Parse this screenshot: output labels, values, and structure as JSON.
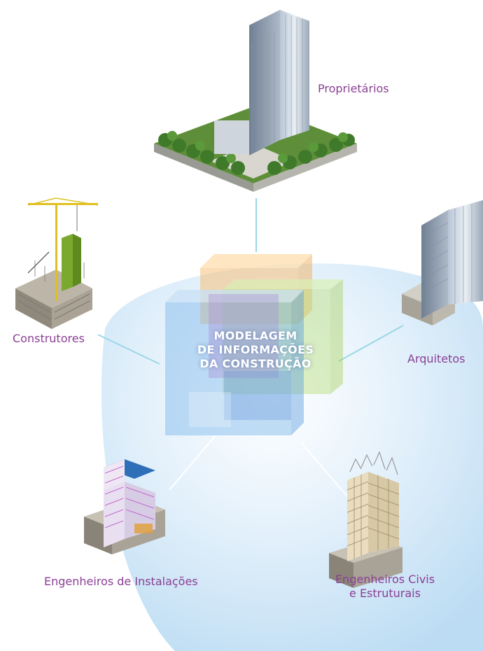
{
  "center": {
    "line1": "MODELAGEM",
    "line2": "DE INFORMAÇÕES",
    "line3": "DA CONSTRUÇÃO"
  },
  "nodes": {
    "owners": "Proprietários",
    "builders": "Construtores",
    "architects": "Arquitetos",
    "mep_engineers": "Engenheiros de Instalações",
    "structural_line1": "Engenheiros Civis",
    "structural_line2": "e Estruturais"
  },
  "colors": {
    "label": "#8a3f94",
    "connector": "#9bd7e6",
    "halo": "#cfe6f7",
    "cube_orange": "#f5c07a",
    "cube_green": "#b9de7a",
    "cube_blue": "#7ab6ec",
    "cube_purple": "#a98fd6"
  },
  "icons": {
    "owners": "office-tower-with-park-icon",
    "builders": "construction-crane-site-icon",
    "architects": "glass-skyscraper-icon",
    "mep_engineers": "building-mep-systems-icon",
    "structural": "steel-frame-tower-icon"
  }
}
